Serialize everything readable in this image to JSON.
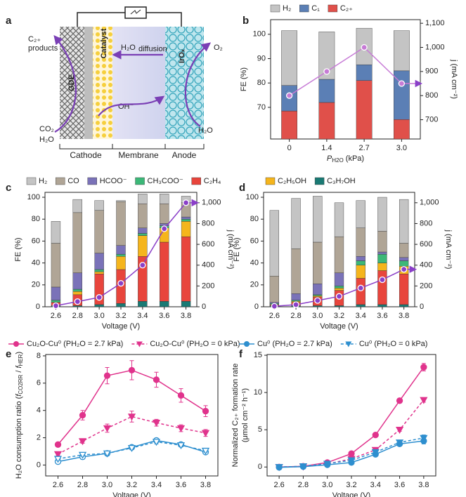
{
  "diagram": {
    "panel": "a",
    "labels": {
      "c2": "C₂₊",
      "products": "products",
      "o2": "O₂",
      "h2o_diff": "H₂O",
      "diffusion": "diffusion",
      "gde": "GDE",
      "catalyst": "Catalyst",
      "irox": "IrOₓ",
      "oh": "OH⁻",
      "co2": "CO₂",
      "h2o_in": "H₂O",
      "h2o_anode": "H₂O"
    },
    "sections": [
      "Cathode",
      "Membrane",
      "Anode"
    ]
  },
  "chart_data": [
    {
      "panel": "b",
      "type": "bar",
      "stacked": true,
      "categories": [
        "0",
        "1.4",
        "2.7",
        "3.0"
      ],
      "x_label": [
        {
          "text": "P",
          "style": "italic"
        },
        {
          "text": "H2O",
          "style": "sub"
        },
        {
          "text": " (kPa)"
        }
      ],
      "y_label": "FE (%)",
      "y2_label": "j (mA cm⁻²)",
      "ylim": [
        57,
        106
      ],
      "yticks": [
        70,
        80,
        90,
        100
      ],
      "y2lim": [
        620,
        1115
      ],
      "y2ticks": [
        700,
        800,
        900,
        {
          "value": 1000,
          "label": "1,000"
        },
        {
          "value": 1100,
          "label": "1,100"
        }
      ],
      "series": [
        {
          "name": "H₂",
          "color": "#c4c4c4",
          "values": [
            22.5,
            19.5,
            15,
            16.5
          ]
        },
        {
          "name": "C₁",
          "color": "#5b7fb5",
          "values": [
            10.5,
            9.5,
            6.5,
            20
          ]
        },
        {
          "name": "C₂₊",
          "color": "#e0504a",
          "values": [
            68.5,
            72,
            81,
            65
          ]
        },
        {
          "type": "line",
          "axis": "y2",
          "color": "#c77bd6",
          "values": [
            800,
            900,
            1000,
            850
          ]
        }
      ]
    },
    {
      "panel": "c",
      "type": "bar",
      "stacked": true,
      "categories": [
        "2.6",
        "2.8",
        "3.0",
        "3.2",
        "3.4",
        "3.6",
        "3.8"
      ],
      "x_label": "Voltage (V)",
      "y_label": "FE (%)",
      "y2_label": "j (mA cm⁻²)",
      "ylim": [
        0,
        104.5
      ],
      "yticks": [
        0,
        20,
        40,
        60,
        80,
        100
      ],
      "y2lim": [
        0,
        1100
      ],
      "y2ticks": [
        0,
        200,
        400,
        600,
        800,
        {
          "value": 1000,
          "label": "1,000"
        }
      ],
      "series": [
        {
          "name": "H₂",
          "color": "#c4c4c4",
          "values": [
            20,
            12,
            9,
            1,
            9,
            9,
            6
          ]
        },
        {
          "name": "CO",
          "color": "#b0a596",
          "values": [
            40,
            55,
            39,
            40,
            22,
            18,
            13
          ]
        },
        {
          "name": "HCOO⁻",
          "color": "#7a72b8",
          "values": [
            12,
            15,
            15,
            8,
            5,
            2,
            2
          ]
        },
        {
          "name": "CH₃COO⁻",
          "color": "#3cb878",
          "values": [
            2,
            2,
            2,
            2,
            2,
            2,
            2
          ]
        },
        {
          "color": "#f5b51c",
          "values": [
            0,
            3,
            2,
            12,
            19,
            13,
            14
          ]
        },
        {
          "name": "C₂H₄",
          "color": "#e8453c",
          "values": [
            3,
            10,
            28,
            31,
            41,
            54,
            59
          ]
        },
        {
          "color": "#1a7a74",
          "values": [
            1,
            1,
            2,
            3,
            5,
            5,
            5
          ]
        },
        {
          "type": "line",
          "axis": "y2",
          "color": "#8a3fc8",
          "values": [
            10,
            50,
            90,
            225,
            400,
            750,
            1000
          ]
        }
      ]
    },
    {
      "panel": "d",
      "type": "bar",
      "stacked": true,
      "categories": [
        "2.6",
        "2.8",
        "3.0",
        "3.2",
        "3.4",
        "3.6",
        "3.8"
      ],
      "x_label": "Voltage (V)",
      "y_label": "FE (%)",
      "y2_label": "j (mA cm⁻²)",
      "ylim": [
        0,
        104.5
      ],
      "yticks": [
        0,
        20,
        40,
        60,
        80,
        100
      ],
      "y2lim": [
        0,
        1100
      ],
      "y2ticks": [
        0,
        200,
        400,
        600,
        800,
        {
          "value": 1000,
          "label": "1,000"
        }
      ],
      "series": [
        {
          "color": "#c4c4c4",
          "values": [
            60,
            46,
            42,
            31,
            25,
            31,
            40
          ]
        },
        {
          "color": "#b0a596",
          "values": [
            24,
            41,
            38,
            33,
            26,
            19,
            13
          ]
        },
        {
          "color": "#7a72b8",
          "values": [
            1,
            6,
            10,
            12,
            4,
            2,
            3
          ]
        },
        {
          "color": "#3cb878",
          "values": [
            1,
            1,
            1,
            2,
            4,
            8,
            5
          ]
        },
        {
          "name": "C₂H₅OH",
          "color": "#f5b51c",
          "values": [
            0,
            1,
            1,
            2,
            12,
            7,
            7
          ]
        },
        {
          "color": "#e8453c",
          "values": [
            1,
            3,
            8,
            14,
            24,
            31,
            28
          ]
        },
        {
          "name": "C₃H₇OH",
          "color": "#1a7a74",
          "values": [
            1,
            1,
            1,
            1,
            2,
            2,
            2
          ]
        },
        {
          "type": "line",
          "axis": "y2",
          "color": "#8a3fc8",
          "values": [
            5,
            20,
            60,
            100,
            180,
            260,
            360
          ]
        }
      ]
    },
    {
      "panel": "e",
      "type": "line",
      "categories": [
        "2.6",
        "2.8",
        "3.0",
        "3.2",
        "3.4",
        "3.6",
        "3.8"
      ],
      "x_label": "Voltage (V)",
      "y_label": [
        {
          "text": "H₂O consumption ratio ("
        },
        {
          "text": "f",
          "style": "italic"
        },
        {
          "text": "CO2RR",
          "style": "sub"
        },
        {
          "text": " / "
        },
        {
          "text": "f",
          "style": "italic"
        },
        {
          "text": "HER",
          "style": "sub"
        },
        {
          "text": ")"
        }
      ],
      "ylim": [
        -0.8,
        8.1
      ],
      "yticks": [
        0,
        2,
        4,
        6,
        8
      ],
      "series": [
        {
          "name": "Cu₂O-Cu⁰ (PH₂O = 2.7 kPa)",
          "color": "#e0338c",
          "marker": "circle",
          "filled": true,
          "dash": false,
          "values": [
            1.5,
            3.65,
            6.55,
            6.95,
            6.25,
            5.1,
            3.95
          ],
          "errors": [
            0.15,
            0.35,
            0.6,
            0.7,
            0.55,
            0.5,
            0.4
          ]
        },
        {
          "name": "Cu₂O-Cu⁰ (PH₂O = 0 kPa)",
          "color": "#e0338c",
          "marker": "triangle",
          "filled": true,
          "dash": true,
          "values": [
            0.8,
            1.75,
            2.7,
            3.55,
            3.1,
            2.7,
            2.35
          ],
          "errors": [
            0.1,
            0.15,
            0.3,
            0.4,
            0.25,
            0.25,
            0.25
          ]
        },
        {
          "color": "#2e8fcf",
          "marker": "circle",
          "filled": false,
          "dash": false,
          "values": [
            0.25,
            0.6,
            0.85,
            1.3,
            1.8,
            1.5,
            0.95
          ],
          "errors": [
            0.1,
            0.1,
            0.1,
            0.15,
            0.15,
            0.1,
            0.1
          ]
        },
        {
          "color": "#2e8fcf",
          "marker": "triangle",
          "filled": false,
          "dash": true,
          "values": [
            0.45,
            0.75,
            0.85,
            1.25,
            1.7,
            1.45,
            1.05
          ],
          "errors": [
            0.1,
            0.1,
            0.1,
            0.1,
            0.15,
            0.1,
            0.1
          ]
        }
      ]
    },
    {
      "panel": "f",
      "type": "line",
      "categories": [
        "2.6",
        "2.8",
        "3.0",
        "3.2",
        "3.4",
        "3.6",
        "3.8"
      ],
      "x_label": "Voltage (V)",
      "y_label": [
        "Normalized C₂₊ formation rate",
        "(μmol cm⁻² h⁻¹)"
      ],
      "ylim": [
        -1.2,
        15.1
      ],
      "yticks": [
        0,
        5,
        10,
        15
      ],
      "series": [
        {
          "color": "#e0338c",
          "marker": "circle",
          "filled": true,
          "dash": false,
          "values": [
            0,
            0.1,
            0.6,
            1.8,
            4.3,
            8.9,
            13.4
          ],
          "errors": [
            0.1,
            0.1,
            0.15,
            0.2,
            0.2,
            0.3,
            0.5
          ]
        },
        {
          "color": "#e0338c",
          "marker": "triangle",
          "filled": true,
          "dash": true,
          "values": [
            0,
            0.05,
            0.4,
            1.1,
            2.3,
            5.0,
            9.0
          ],
          "errors": [
            0.1,
            0.1,
            0.1,
            0.15,
            0.15,
            0.2,
            0.3
          ]
        },
        {
          "name": "Cu⁰ (PH₂O = 2.7 kPa)",
          "color": "#2e8fcf",
          "marker": "circle",
          "filled": true,
          "dash": false,
          "values": [
            -0.05,
            0.05,
            0.3,
            0.6,
            1.7,
            3.1,
            3.5
          ],
          "errors": [
            0.1,
            0.1,
            0.1,
            0.15,
            0.2,
            0.3,
            0.4
          ]
        },
        {
          "name": "Cu⁰ (PH₂O = 0 kPa)",
          "color": "#2e8fcf",
          "marker": "triangle",
          "filled": true,
          "dash": true,
          "values": [
            0,
            0.1,
            0.45,
            0.9,
            2.0,
            3.3,
            3.9
          ],
          "errors": [
            0.1,
            0.1,
            0.1,
            0.15,
            0.2,
            0.3,
            0.4
          ]
        }
      ]
    }
  ]
}
